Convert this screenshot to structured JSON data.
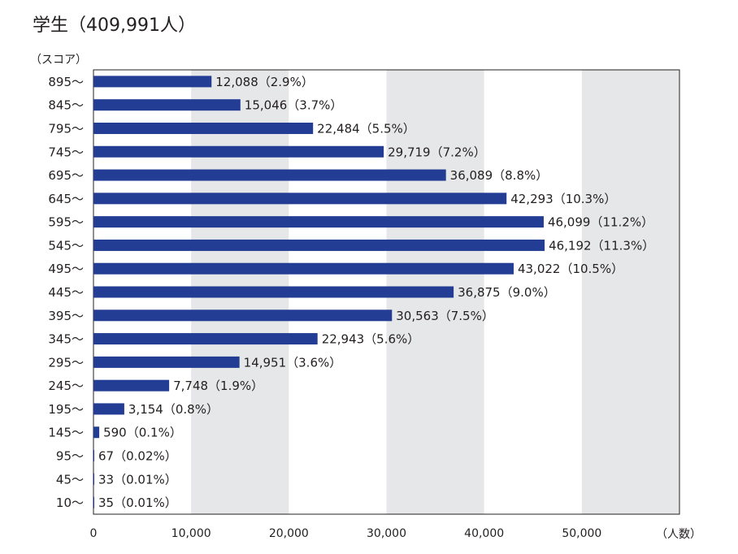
{
  "chart_data": {
    "type": "bar",
    "orientation": "horizontal",
    "title": "学生（409,991人）",
    "y_label": "（スコア）",
    "x_label": "（人数）",
    "categories": [
      "895～",
      "845～",
      "795～",
      "745～",
      "695～",
      "645～",
      "595～",
      "545～",
      "495～",
      "445～",
      "395～",
      "345～",
      "295～",
      "245～",
      "195～",
      "145～",
      "95～",
      "45～",
      "10～"
    ],
    "values": [
      12088,
      15046,
      22484,
      29719,
      36089,
      42293,
      46099,
      46192,
      43022,
      36875,
      30563,
      22943,
      14951,
      7748,
      3154,
      590,
      67,
      33,
      35
    ],
    "value_labels": [
      "12,088（2.9%）",
      "15,046（3.7%）",
      "22,484（5.5%）",
      "29,719（7.2%）",
      "36,089（8.8%）",
      "42,293（10.3%）",
      "46,099（11.2%）",
      "46,192（11.3%）",
      "43,022（10.5%）",
      "36,875（9.0%）",
      "30,563（7.5%）",
      "22,943（5.6%）",
      "14,951（3.6%）",
      "7,748（1.9%）",
      "3,154（0.8%）",
      "590（0.1%）",
      "67（0.02%）",
      "33（0.01%）",
      "35（0.01%）"
    ],
    "color": "#223d93",
    "band_color": "#e6e7e8",
    "xlim": [
      0,
      60000
    ],
    "xticks": [
      0,
      {
        "value": 10000,
        "label": "10,000"
      },
      {
        "value": 20000,
        "label": "20,000"
      },
      {
        "value": 30000,
        "label": "30,000"
      },
      {
        "value": 40000,
        "label": "40,000"
      },
      {
        "value": 50000,
        "label": "50,000"
      }
    ]
  }
}
